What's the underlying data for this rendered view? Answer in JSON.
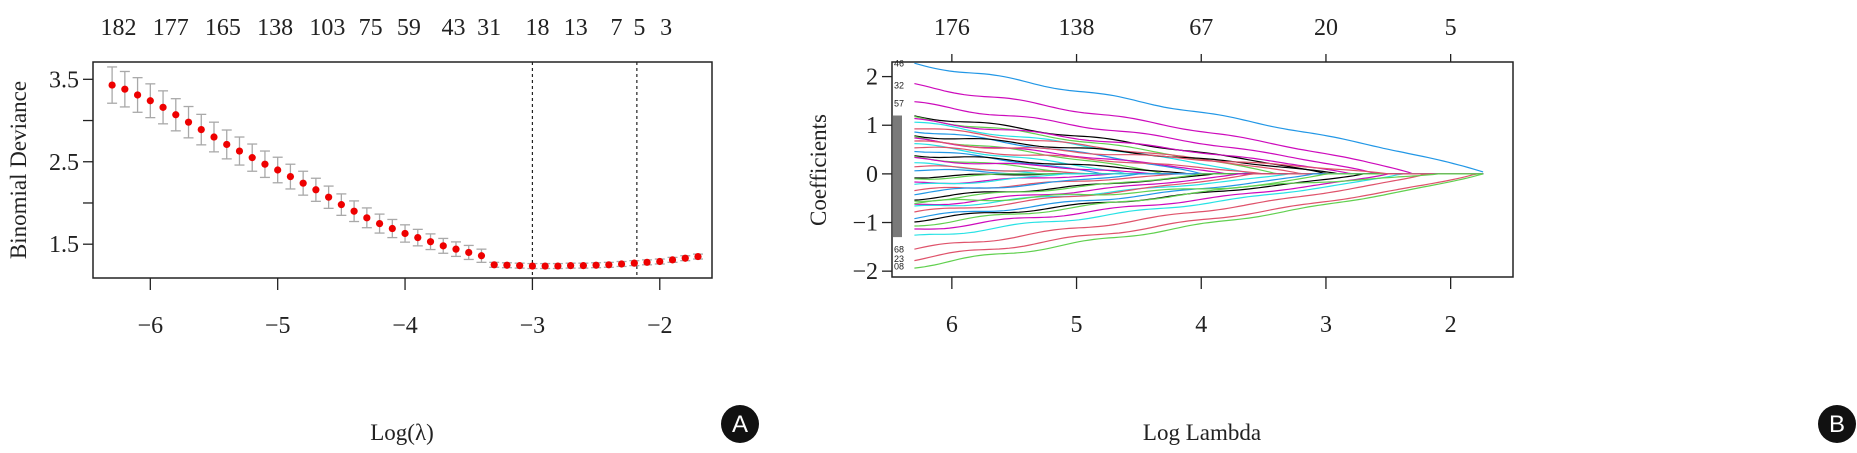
{
  "chart_data": [
    {
      "panel": "A",
      "type": "scatter",
      "title": "",
      "xlabel": "Log(λ)",
      "ylabel": "Binomial Deviance",
      "xlim": [
        -6.45,
        -1.59
      ],
      "ylim": [
        1.09,
        3.71
      ],
      "xticks": [
        -6,
        -5,
        -4,
        -3,
        -2
      ],
      "xtick_labels": [
        "−6",
        "−5",
        "−4",
        "−3",
        "−2"
      ],
      "yticks": [
        1.5,
        2.5,
        3.5
      ],
      "ytick_labels": [
        "1.5",
        "2.5",
        "3.5"
      ],
      "yminor_ticks": [
        2.0,
        3.0
      ],
      "top_axis": {
        "x": [
          -6.25,
          -5.84,
          -5.43,
          -5.02,
          -4.61,
          -4.27,
          -3.97,
          -3.62,
          -3.34,
          -2.96,
          -2.66,
          -2.34,
          -2.16,
          -1.95
        ],
        "labels": [
          "182",
          "177",
          "165",
          "138",
          "103",
          "75",
          "59",
          "43",
          "31",
          "18",
          "13",
          "7",
          "5",
          "3"
        ]
      },
      "vlines": [
        -3.0,
        -2.18
      ],
      "point_color": "#EE0000",
      "errorbar_color": "#A9A9A9",
      "x": [
        -6.3,
        -6.2,
        -6.1,
        -6.0,
        -5.9,
        -5.8,
        -5.7,
        -5.6,
        -5.5,
        -5.4,
        -5.3,
        -5.2,
        -5.1,
        -5.0,
        -4.9,
        -4.8,
        -4.7,
        -4.6,
        -4.5,
        -4.4,
        -4.3,
        -4.2,
        -4.1,
        -4.0,
        -3.9,
        -3.8,
        -3.7,
        -3.6,
        -3.5,
        -3.4,
        -3.3,
        -3.2,
        -3.1,
        -3.0,
        -2.9,
        -2.8,
        -2.7,
        -2.6,
        -2.5,
        -2.4,
        -2.3,
        -2.2,
        -2.1,
        -2.0,
        -1.9,
        -1.8,
        -1.7
      ],
      "y": [
        3.43,
        3.38,
        3.31,
        3.24,
        3.16,
        3.07,
        2.98,
        2.89,
        2.8,
        2.71,
        2.63,
        2.55,
        2.47,
        2.4,
        2.32,
        2.24,
        2.16,
        2.07,
        1.98,
        1.9,
        1.82,
        1.75,
        1.69,
        1.63,
        1.58,
        1.53,
        1.48,
        1.44,
        1.4,
        1.36,
        1.25,
        1.245,
        1.24,
        1.235,
        1.235,
        1.235,
        1.24,
        1.24,
        1.245,
        1.25,
        1.26,
        1.27,
        1.28,
        1.29,
        1.31,
        1.33,
        1.35
      ],
      "se": [
        0.22,
        0.215,
        0.21,
        0.205,
        0.2,
        0.195,
        0.19,
        0.185,
        0.18,
        0.175,
        0.17,
        0.165,
        0.16,
        0.155,
        0.15,
        0.145,
        0.14,
        0.135,
        0.13,
        0.125,
        0.12,
        0.115,
        0.11,
        0.105,
        0.1,
        0.095,
        0.09,
        0.088,
        0.085,
        0.08,
        0.03,
        0.03,
        0.03,
        0.03,
        0.03,
        0.03,
        0.03,
        0.03,
        0.03,
        0.03,
        0.03,
        0.03,
        0.03,
        0.03,
        0.03,
        0.03,
        0.03
      ],
      "badge": "A"
    },
    {
      "panel": "B",
      "type": "line",
      "title": "",
      "xlabel": "Log Lambda",
      "ylabel": "Coefficients",
      "xlim": [
        6.48,
        1.5
      ],
      "ylim": [
        -2.12,
        2.3
      ],
      "xticks": [
        6,
        5,
        4,
        3,
        2
      ],
      "xtick_labels": [
        "6",
        "5",
        "4",
        "3",
        "2"
      ],
      "yticks": [
        -2,
        -1,
        0,
        1,
        2
      ],
      "ytick_labels": [
        "−2",
        "−1",
        "0",
        "1",
        "2"
      ],
      "top_axis": {
        "x": [
          6,
          5,
          4,
          3,
          2
        ],
        "labels": [
          "176",
          "138",
          "67",
          "20",
          "5"
        ]
      },
      "x_start": 6.3,
      "palette": [
        "#000000",
        "#DF536B",
        "#61D04F",
        "#2297E6",
        "#28E2E5",
        "#CD0BBC"
      ],
      "paths": [
        {
          "label": "46",
          "start": 2.27,
          "zero_at": 1.7,
          "color": 3
        },
        {
          "label": "32",
          "start": 1.82,
          "zero_at": 2.3,
          "color": 5
        },
        {
          "label": "57",
          "start": 1.45,
          "zero_at": 2.6,
          "color": 5
        },
        {
          "label": "68",
          "start": -1.55,
          "zero_at": 2.2,
          "color": 1
        },
        {
          "label": "23",
          "start": -1.75,
          "zero_at": 1.8,
          "color": 1
        },
        {
          "label": "08",
          "start": -1.9,
          "zero_at": 1.75,
          "color": 2
        },
        {
          "label": "",
          "start": 1.2,
          "zero_at": 3.0,
          "color": 0
        },
        {
          "label": "",
          "start": 1.15,
          "zero_at": 3.4,
          "color": 2
        },
        {
          "label": "",
          "start": 1.1,
          "zero_at": 2.8,
          "color": 5
        },
        {
          "label": "",
          "start": 1.05,
          "zero_at": 3.6,
          "color": 4
        },
        {
          "label": "",
          "start": 0.95,
          "zero_at": 3.2,
          "color": 1
        },
        {
          "label": "",
          "start": 0.9,
          "zero_at": 4.0,
          "color": 3
        },
        {
          "label": "",
          "start": 0.8,
          "zero_at": 2.9,
          "color": 0
        },
        {
          "label": "",
          "start": 0.75,
          "zero_at": 4.3,
          "color": 2
        },
        {
          "label": "",
          "start": 0.7,
          "zero_at": 3.8,
          "color": 5
        },
        {
          "label": "",
          "start": 0.6,
          "zero_at": 4.6,
          "color": 4
        },
        {
          "label": "",
          "start": 0.55,
          "zero_at": 3.5,
          "color": 1
        },
        {
          "label": "",
          "start": 0.5,
          "zero_at": 4.8,
          "color": 3
        },
        {
          "label": "",
          "start": 0.4,
          "zero_at": 4.1,
          "color": 0
        },
        {
          "label": "",
          "start": 0.35,
          "zero_at": 5.0,
          "color": 2
        },
        {
          "label": "",
          "start": 0.3,
          "zero_at": 4.4,
          "color": 5
        },
        {
          "label": "",
          "start": 0.2,
          "zero_at": 5.3,
          "color": 4
        },
        {
          "label": "",
          "start": 0.15,
          "zero_at": 4.9,
          "color": 1
        },
        {
          "label": "",
          "start": 0.1,
          "zero_at": 5.5,
          "color": 3
        },
        {
          "label": "",
          "start": -0.05,
          "zero_at": 5.2,
          "color": 0
        },
        {
          "label": "",
          "start": -0.1,
          "zero_at": 5.6,
          "color": 2
        },
        {
          "label": "",
          "start": -0.2,
          "zero_at": 4.7,
          "color": 5
        },
        {
          "label": "",
          "start": -0.25,
          "zero_at": 5.1,
          "color": 4
        },
        {
          "label": "",
          "start": -0.35,
          "zero_at": 4.2,
          "color": 1
        },
        {
          "label": "",
          "start": -0.4,
          "zero_at": 4.5,
          "color": 3
        },
        {
          "label": "",
          "start": -0.5,
          "zero_at": 3.9,
          "color": 0
        },
        {
          "label": "",
          "start": -0.55,
          "zero_at": 4.0,
          "color": 2
        },
        {
          "label": "",
          "start": -0.65,
          "zero_at": 3.7,
          "color": 5
        },
        {
          "label": "",
          "start": -0.7,
          "zero_at": 3.3,
          "color": 4
        },
        {
          "label": "",
          "start": -0.8,
          "zero_at": 3.6,
          "color": 1
        },
        {
          "label": "",
          "start": -0.9,
          "zero_at": 3.1,
          "color": 3
        },
        {
          "label": "",
          "start": -0.95,
          "zero_at": 2.7,
          "color": 0
        },
        {
          "label": "",
          "start": -1.05,
          "zero_at": 3.0,
          "color": 2
        },
        {
          "label": "",
          "start": -1.15,
          "zero_at": 2.5,
          "color": 5
        },
        {
          "label": "",
          "start": -1.3,
          "zero_at": 2.4,
          "color": 4
        },
        {
          "label": "",
          "start": 0.65,
          "zero_at": 2.5,
          "color": 1
        },
        {
          "label": "",
          "start": -0.6,
          "zero_at": 2.1,
          "color": 2
        }
      ],
      "badge": "B"
    }
  ]
}
